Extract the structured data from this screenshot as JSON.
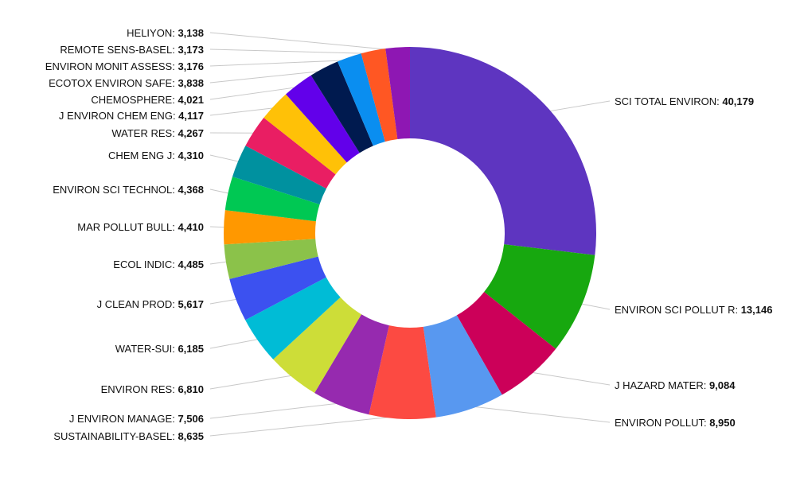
{
  "chart_data": {
    "type": "pie",
    "variant": "donut",
    "title": "",
    "start": "12 o'clock, clockwise",
    "slices": [
      {
        "label": "SCI TOTAL ENVIRON",
        "value": 40179,
        "value_text": "40,179",
        "color": "#5e35c0"
      },
      {
        "label": "ENVIRON SCI POLLUT R",
        "value": 13146,
        "value_text": "13,146",
        "color": "#17a80f"
      },
      {
        "label": "J HAZARD MATER",
        "value": 9084,
        "value_text": "9,084",
        "color": "#cc0059"
      },
      {
        "label": "ENVIRON POLLUT",
        "value": 8950,
        "value_text": "8,950",
        "color": "#5898f0"
      },
      {
        "label": "SUSTAINABILITY-BASEL",
        "value": 8635,
        "value_text": "8,635",
        "color": "#fc4a42"
      },
      {
        "label": "J ENVIRON MANAGE",
        "value": 7506,
        "value_text": "7,506",
        "color": "#962aaf"
      },
      {
        "label": "ENVIRON RES",
        "value": 6810,
        "value_text": "6,810",
        "color": "#cddd38"
      },
      {
        "label": "WATER-SUI",
        "value": 6185,
        "value_text": "6,185",
        "color": "#00bcd6"
      },
      {
        "label": "J CLEAN PROD",
        "value": 5617,
        "value_text": "5,617",
        "color": "#3c51f0"
      },
      {
        "label": "ECOL INDIC",
        "value": 4485,
        "value_text": "4,485",
        "color": "#8bc24a"
      },
      {
        "label": "MAR POLLUT BULL",
        "value": 4410,
        "value_text": "4,410",
        "color": "#ff9800"
      },
      {
        "label": "ENVIRON SCI TECHNOL",
        "value": 4368,
        "value_text": "4,368",
        "color": "#00c853"
      },
      {
        "label": "CHEM ENG J",
        "value": 4310,
        "value_text": "4,310",
        "color": "#00919f"
      },
      {
        "label": "WATER RES",
        "value": 4267,
        "value_text": "4,267",
        "color": "#e91e63"
      },
      {
        "label": "J ENVIRON CHEM ENG",
        "value": 4117,
        "value_text": "4,117",
        "color": "#ffc107"
      },
      {
        "label": "CHEMOSPHERE",
        "value": 4021,
        "value_text": "4,021",
        "color": "#6200ea"
      },
      {
        "label": "ECOTOX ENVIRON SAFE",
        "value": 3838,
        "value_text": "3,838",
        "color": "#001a4f"
      },
      {
        "label": "ENVIRON MONIT ASSESS",
        "value": 3176,
        "value_text": "3,176",
        "color": "#0a8ef0"
      },
      {
        "label": "REMOTE SENS-BASEL",
        "value": 3173,
        "value_text": "3,173",
        "color": "#ff5723"
      },
      {
        "label": "HELIYON",
        "value": 3138,
        "value_text": "3,138",
        "color": "#8e17b3"
      }
    ]
  }
}
